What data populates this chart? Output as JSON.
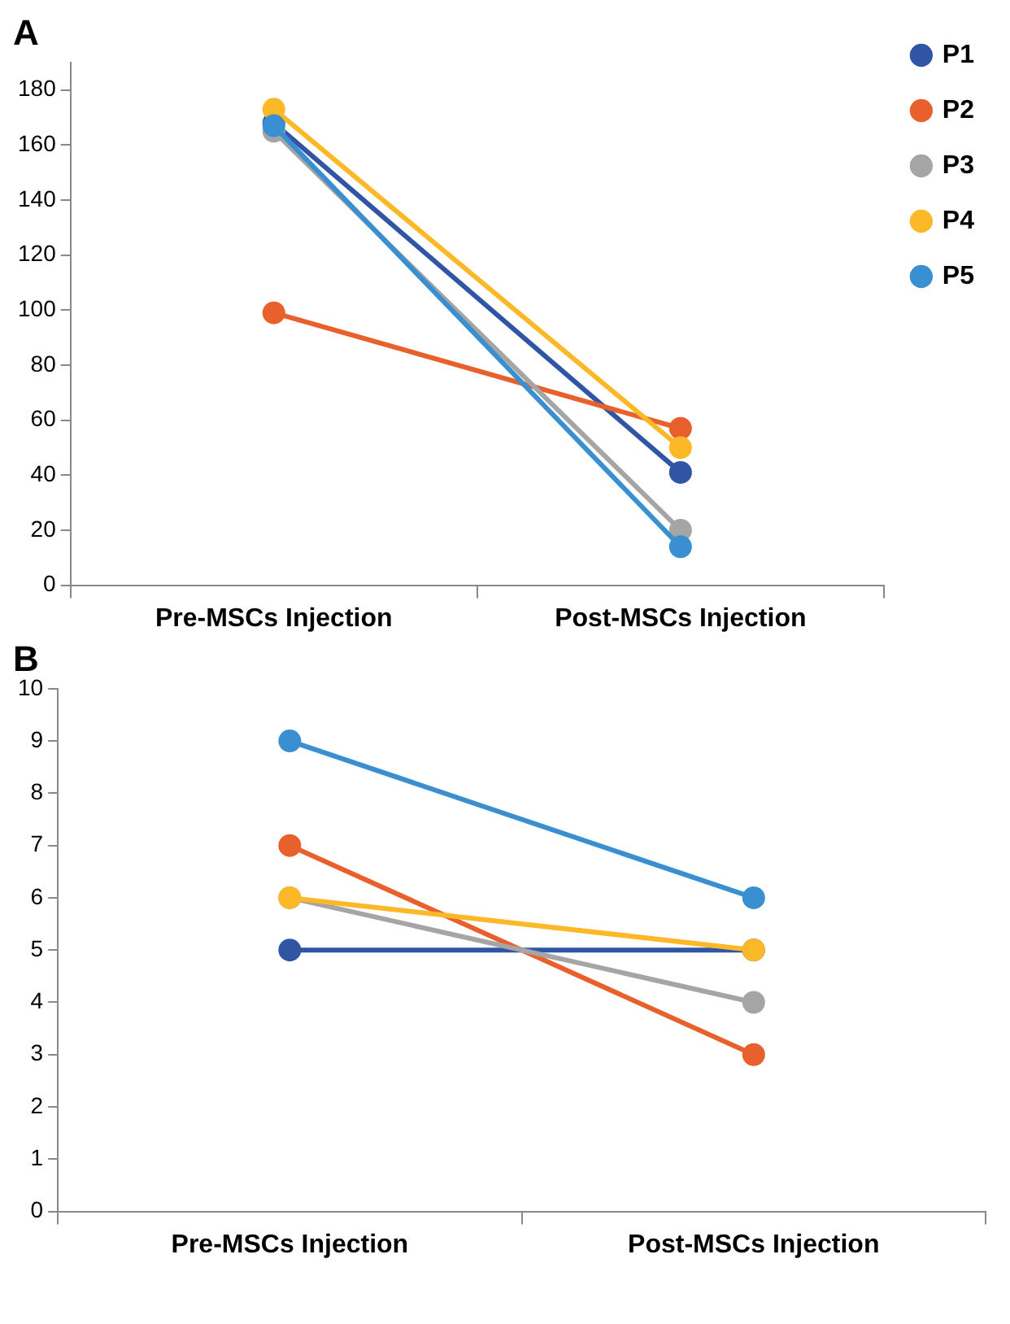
{
  "chart_data": [
    {
      "type": "line",
      "title": "A",
      "categories": [
        "Pre-MSCs Injection",
        "Post-MSCs Injection"
      ],
      "ylim": [
        0,
        190
      ],
      "yticks": [
        0,
        20,
        40,
        60,
        80,
        100,
        120,
        140,
        160,
        180
      ],
      "marker": "circle",
      "line_style": "solid",
      "legend": "top right",
      "series": [
        {
          "name": "P1",
          "color": "#2f55a4",
          "values": [
            168,
            41
          ]
        },
        {
          "name": "P2",
          "color": "#e8612c",
          "values": [
            99,
            57
          ]
        },
        {
          "name": "P3",
          "color": "#a5a5a5",
          "values": [
            165,
            20
          ]
        },
        {
          "name": "P4",
          "color": "#fdb827",
          "values": [
            173,
            50
          ]
        },
        {
          "name": "P5",
          "color": "#3a8fd0",
          "values": [
            167,
            14
          ]
        }
      ]
    },
    {
      "type": "line",
      "title": "B",
      "categories": [
        "Pre-MSCs Injection",
        "Post-MSCs Injection"
      ],
      "ylim": [
        0,
        10
      ],
      "yticks": [
        0,
        1,
        2,
        3,
        4,
        5,
        6,
        7,
        8,
        9,
        10
      ],
      "marker": "circle",
      "line_style": "solid",
      "series": [
        {
          "color": "#2f55a4",
          "values": [
            5,
            5
          ]
        },
        {
          "color": "#e8612c",
          "values": [
            7,
            3
          ]
        },
        {
          "color": "#a5a5a5",
          "values": [
            6,
            4
          ]
        },
        {
          "color": "#fdb827",
          "values": [
            6,
            5
          ]
        },
        {
          "color": "#3a8fd0",
          "values": [
            9,
            6
          ]
        }
      ]
    }
  ]
}
